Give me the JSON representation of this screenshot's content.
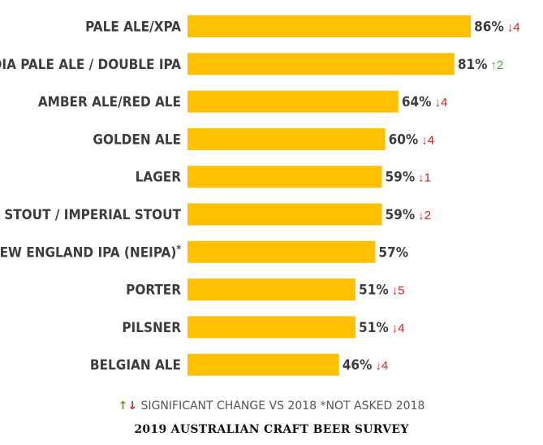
{
  "chart_data": {
    "type": "bar",
    "orientation": "horizontal",
    "title": "2019 AUSTRALIAN CRAFT BEER SURVEY",
    "categories": [
      "PALE ALE/XPA",
      "INDIA PALE ALE / DOUBLE IPA",
      "AMBER ALE/RED ALE",
      "GOLDEN ALE",
      "LAGER",
      "STOUT / IMPERIAL STOUT",
      "NEW ENGLAND IPA (NEIPA)",
      "PORTER",
      "PILSNER",
      "BELGIAN ALE"
    ],
    "footnote_marks": [
      "",
      "",
      "",
      "",
      "",
      "",
      "*",
      "",
      "",
      ""
    ],
    "values": [
      86,
      81,
      64,
      60,
      59,
      59,
      57,
      51,
      51,
      46
    ],
    "value_labels": [
      "86%",
      "81%",
      "64%",
      "60%",
      "59%",
      "59%",
      "57%",
      "51%",
      "51%",
      "46%"
    ],
    "change": [
      {
        "direction": "down",
        "amount": "4"
      },
      {
        "direction": "up",
        "amount": "2"
      },
      {
        "direction": "down",
        "amount": "4"
      },
      {
        "direction": "down",
        "amount": "4"
      },
      {
        "direction": "down",
        "amount": "1"
      },
      {
        "direction": "down",
        "amount": "2"
      },
      {
        "direction": "none",
        "amount": ""
      },
      {
        "direction": "down",
        "amount": "5"
      },
      {
        "direction": "down",
        "amount": "4"
      },
      {
        "direction": "down",
        "amount": "4"
      }
    ],
    "xlim": [
      0,
      100
    ],
    "grid": false,
    "legend": "bottom"
  },
  "legend_text": "SIGNIFICANT CHANGE VS 2018 *NOT ASKED 2018",
  "colors": {
    "bar": "#ffc000",
    "up": "#5aa02c",
    "down": "#e02020",
    "text": "#3d3d3d"
  }
}
